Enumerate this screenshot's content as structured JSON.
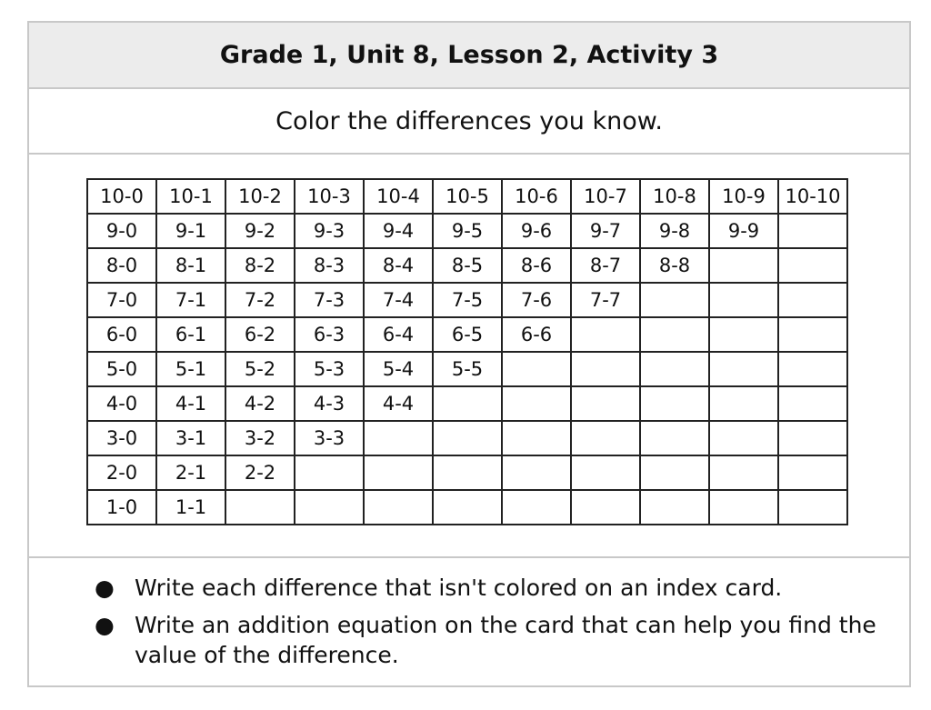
{
  "header": {
    "title": "Grade 1, Unit 8, Lesson 2, Activity 3"
  },
  "prompt": "Color the differences you know.",
  "table": {
    "rows": [
      [
        "10-0",
        "10-1",
        "10-2",
        "10-3",
        "10-4",
        "10-5",
        "10-6",
        "10-7",
        "10-8",
        "10-9",
        "10-10"
      ],
      [
        "9-0",
        "9-1",
        "9-2",
        "9-3",
        "9-4",
        "9-5",
        "9-6",
        "9-7",
        "9-8",
        "9-9",
        ""
      ],
      [
        "8-0",
        "8-1",
        "8-2",
        "8-3",
        "8-4",
        "8-5",
        "8-6",
        "8-7",
        "8-8",
        "",
        ""
      ],
      [
        "7-0",
        "7-1",
        "7-2",
        "7-3",
        "7-4",
        "7-5",
        "7-6",
        "7-7",
        "",
        "",
        ""
      ],
      [
        "6-0",
        "6-1",
        "6-2",
        "6-3",
        "6-4",
        "6-5",
        "6-6",
        "",
        "",
        "",
        ""
      ],
      [
        "5-0",
        "5-1",
        "5-2",
        "5-3",
        "5-4",
        "5-5",
        "",
        "",
        "",
        "",
        ""
      ],
      [
        "4-0",
        "4-1",
        "4-2",
        "4-3",
        "4-4",
        "",
        "",
        "",
        "",
        "",
        ""
      ],
      [
        "3-0",
        "3-1",
        "3-2",
        "3-3",
        "",
        "",
        "",
        "",
        "",
        "",
        ""
      ],
      [
        "2-0",
        "2-1",
        "2-2",
        "",
        "",
        "",
        "",
        "",
        "",
        "",
        ""
      ],
      [
        "1-0",
        "1-1",
        "",
        "",
        "",
        "",
        "",
        "",
        "",
        "",
        ""
      ]
    ]
  },
  "notes": {
    "bullet": "●",
    "items": [
      "Write each difference that isn't colored on an index card.",
      "Write an addition equation on the card that can help you find the value of the difference."
    ]
  }
}
